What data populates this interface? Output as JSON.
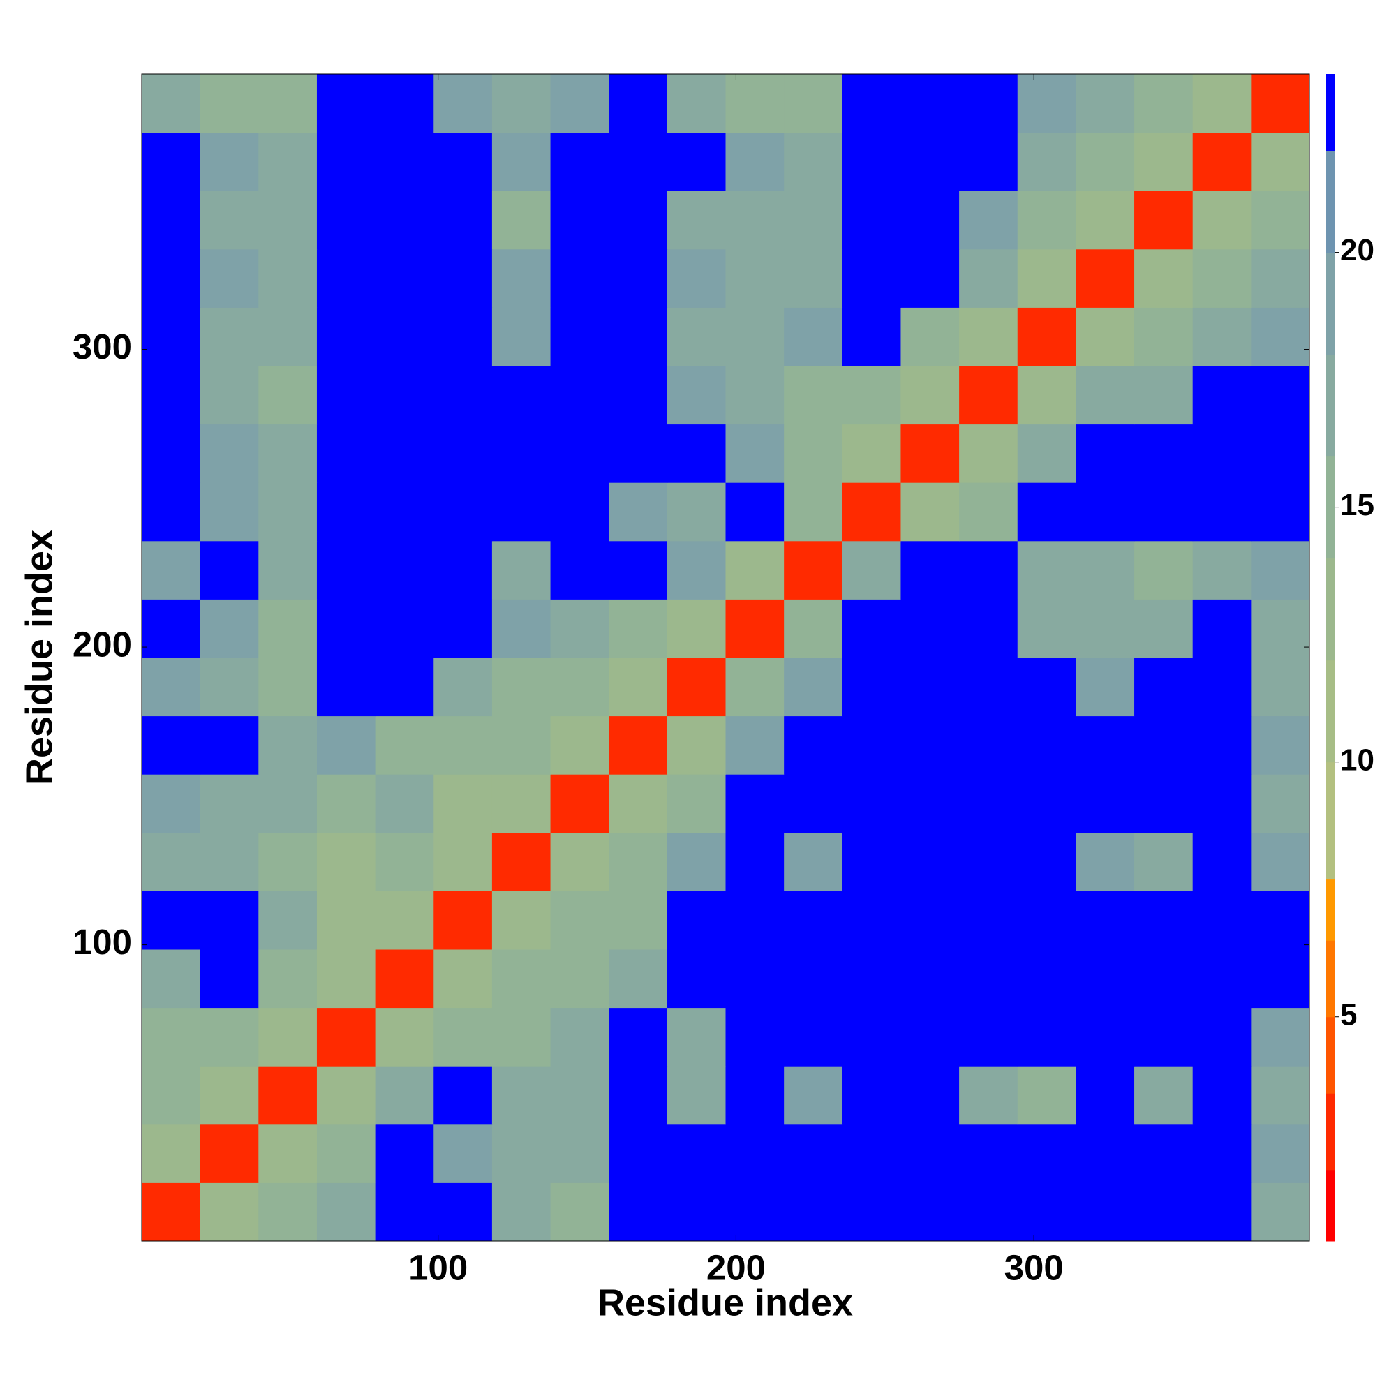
{
  "chart_data": {
    "type": "heatmap",
    "x_label": "Residue index",
    "y_label": "Residue index",
    "xlim": [
      0.5,
      392.5
    ],
    "ylim": [
      0.5,
      392.5
    ],
    "xticks": [
      100,
      200,
      300
    ],
    "yticks": [
      100,
      200,
      300
    ],
    "edges": [
      0.5,
      20.1,
      39.7,
      59.3,
      78.9,
      98.5,
      118.1,
      137.7,
      157.3,
      176.9,
      196.5,
      216.1,
      235.7,
      255.3,
      274.9,
      294.5,
      314.1,
      333.7,
      353.3,
      372.9,
      392.5
    ],
    "z": [
      [
        3,
        13,
        14,
        16,
        24,
        24,
        17,
        15,
        24,
        24,
        24,
        24,
        24,
        24,
        24,
        24,
        24,
        24,
        24,
        16
      ],
      [
        13,
        3,
        12,
        15,
        24,
        19,
        17,
        16,
        24,
        24,
        24,
        24,
        24,
        24,
        24,
        24,
        24,
        24,
        24,
        18
      ],
      [
        14,
        12,
        3,
        12,
        16,
        24,
        16,
        17,
        24,
        16,
        24,
        18,
        24,
        24,
        16,
        15,
        24,
        16,
        24,
        17
      ],
      [
        15,
        14,
        12,
        3,
        12,
        14,
        14,
        16,
        24,
        17,
        24,
        24,
        24,
        24,
        24,
        24,
        24,
        24,
        24,
        18
      ],
      [
        17,
        24,
        14,
        12,
        3,
        12,
        14,
        14,
        17,
        24,
        24,
        24,
        24,
        24,
        24,
        24,
        24,
        24,
        24,
        24
      ],
      [
        24,
        24,
        16,
        13,
        12,
        3,
        12,
        14,
        15,
        24,
        24,
        24,
        24,
        24,
        24,
        24,
        24,
        24,
        24,
        24
      ],
      [
        16,
        16,
        14,
        13,
        14,
        12,
        3,
        12,
        14,
        18,
        24,
        18,
        24,
        24,
        24,
        24,
        18,
        17,
        24,
        18
      ],
      [
        18,
        16,
        16,
        14,
        16,
        13,
        12,
        3,
        12,
        15,
        24,
        24,
        24,
        24,
        24,
        24,
        24,
        24,
        24,
        17
      ],
      [
        24,
        24,
        17,
        18,
        14,
        14,
        14,
        12,
        3,
        12,
        18,
        24,
        24,
        24,
        24,
        24,
        24,
        24,
        24,
        18
      ],
      [
        18,
        17,
        14,
        24,
        24,
        16,
        15,
        14,
        12,
        3,
        14,
        18,
        24,
        24,
        24,
        24,
        18,
        24,
        24,
        16
      ],
      [
        24,
        18,
        14,
        24,
        24,
        24,
        18,
        16,
        15,
        13,
        3,
        14,
        24,
        24,
        24,
        16,
        16,
        16,
        24,
        17
      ],
      [
        18,
        24,
        16,
        24,
        24,
        24,
        17,
        24,
        24,
        18,
        13,
        3,
        16,
        24,
        24,
        16,
        17,
        14,
        16,
        18
      ],
      [
        24,
        18,
        16,
        24,
        24,
        24,
        24,
        24,
        18,
        16,
        24,
        14,
        3,
        12,
        14,
        24,
        24,
        24,
        24,
        24
      ],
      [
        24,
        18,
        17,
        24,
        24,
        24,
        24,
        24,
        24,
        24,
        18,
        14,
        12,
        3,
        12,
        16,
        24,
        24,
        24,
        24
      ],
      [
        24,
        16,
        15,
        24,
        24,
        24,
        24,
        24,
        24,
        18,
        16,
        14,
        14,
        12,
        3,
        12,
        16,
        17,
        24,
        24
      ],
      [
        24,
        16,
        16,
        24,
        24,
        24,
        18,
        24,
        24,
        16,
        16,
        18,
        24,
        14,
        12,
        3,
        12,
        14,
        16,
        18
      ],
      [
        24,
        18,
        17,
        24,
        24,
        24,
        18,
        24,
        24,
        18,
        16,
        16,
        24,
        24,
        16,
        12,
        3,
        12,
        14,
        16
      ],
      [
        24,
        16,
        16,
        24,
        24,
        24,
        14,
        24,
        24,
        17,
        16,
        16,
        24,
        24,
        18,
        14,
        12,
        3,
        12,
        15
      ],
      [
        24,
        18,
        17,
        24,
        24,
        24,
        18,
        24,
        24,
        24,
        18,
        16,
        24,
        24,
        24,
        16,
        14,
        12,
        3,
        12
      ],
      [
        16,
        14,
        15,
        24,
        24,
        18,
        16,
        18,
        24,
        16,
        15,
        15,
        24,
        24,
        24,
        18,
        16,
        15,
        12,
        3
      ]
    ],
    "clim": [
      0.6,
      23.5
    ],
    "cticks": [
      5,
      10,
      15,
      20
    ],
    "levels": [
      0.6,
      2,
      3.5,
      5,
      6.5,
      7.7,
      10,
      12,
      14,
      16,
      18,
      20,
      22,
      23.5
    ],
    "colors": [
      "#ff0000",
      "#ff2a00",
      "#ff5500",
      "#ff7700",
      "#ff9900",
      "#b3c080",
      "#a7bd86",
      "#9cb88d",
      "#92b396",
      "#88aaa0",
      "#7fa2a8",
      "#6e94b0",
      "#0000ff"
    ]
  }
}
